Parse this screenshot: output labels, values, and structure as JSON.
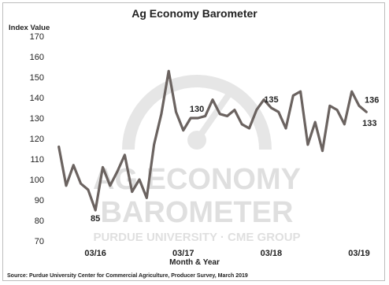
{
  "chart_data": {
    "type": "line",
    "title": "Ag Economy Barometer",
    "ylabel": "Index Value",
    "xlabel": "Month & Year",
    "ylim": [
      70,
      170
    ],
    "yticks": [
      70,
      80,
      90,
      100,
      110,
      120,
      130,
      140,
      150,
      160,
      170
    ],
    "xtick_labels": [
      "03/16",
      "03/17",
      "03/18",
      "03/19"
    ],
    "xtick_index": [
      5,
      17,
      29,
      41
    ],
    "grid": false,
    "series": [
      {
        "name": "",
        "color": "#6b6360",
        "values": [
          116,
          97,
          107,
          98,
          95,
          85,
          106,
          97,
          104,
          112,
          94,
          100,
          91,
          117,
          132,
          153,
          133,
          124,
          130,
          130,
          131,
          139,
          132,
          131,
          134,
          127,
          125,
          134,
          139,
          135,
          133,
          125,
          141,
          143,
          117,
          128,
          114,
          136,
          134,
          127,
          143,
          136,
          133
        ]
      }
    ],
    "data_labels": [
      {
        "index": 5,
        "text": "85"
      },
      {
        "index": 18,
        "text": "130"
      },
      {
        "index": 29,
        "text": "135"
      },
      {
        "index": 41,
        "text": "136"
      },
      {
        "index": 42,
        "text": "133"
      }
    ]
  },
  "footer": {
    "source": "Source: Purdue University Center for Commercial Agriculture, Producer Survey, March 2019"
  },
  "watermark": {
    "line1": "AG ECONOMY",
    "line2": "BAROMETER",
    "line3": "PURDUE UNIVERSITY · CME GROUP",
    "icon": "gauge-icon"
  }
}
